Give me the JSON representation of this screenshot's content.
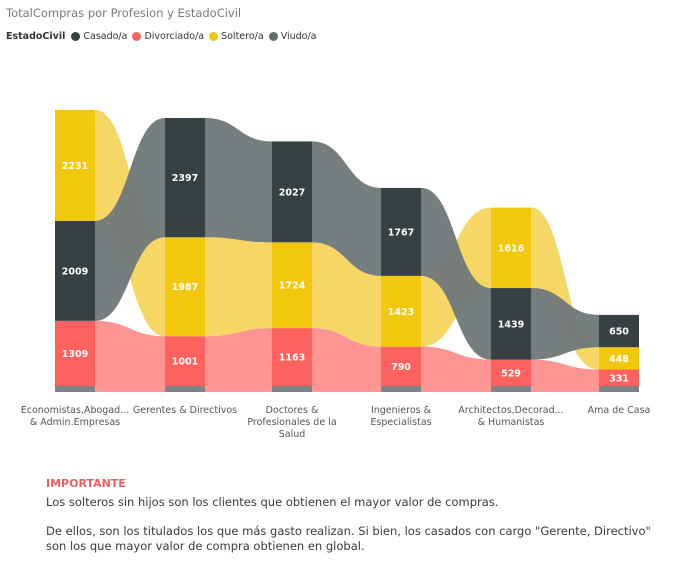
{
  "title": "TotalCompras por Profesion y EstadoCivil",
  "legend": {
    "title": "EstadoCivil",
    "items": [
      {
        "label": "Casado/a",
        "color": "#374144"
      },
      {
        "label": "Divorciado/a",
        "color": "#fd625e"
      },
      {
        "label": "Soltero/a",
        "color": "#f2c80f"
      },
      {
        "label": "Viudo/a",
        "color": "#5f6b6d"
      }
    ]
  },
  "chart_data": {
    "type": "bar",
    "title": "TotalCompras por Profesion y EstadoCivil",
    "categories": [
      [
        "Economistas,Abogad...",
        "& Admin.Empresas"
      ],
      [
        "Gerentes & Directivos"
      ],
      [
        "Doctores &",
        "Profesionales de la",
        "Salud"
      ],
      [
        "Ingenieros &",
        "Especialistas"
      ],
      [
        "Architectos,Decorad...",
        "& Humanistas"
      ],
      [
        "Ama de Casa"
      ]
    ],
    "stacks": [
      [
        {
          "series": "Divorciado/a",
          "value": 1309
        },
        {
          "series": "Casado/a",
          "value": 2009
        },
        {
          "series": "Soltero/a",
          "value": 2231
        }
      ],
      [
        {
          "series": "Divorciado/a",
          "value": 1001
        },
        {
          "series": "Soltero/a",
          "value": 1987
        },
        {
          "series": "Casado/a",
          "value": 2397
        }
      ],
      [
        {
          "series": "Divorciado/a",
          "value": 1163
        },
        {
          "series": "Soltero/a",
          "value": 1724
        },
        {
          "series": "Casado/a",
          "value": 2027
        }
      ],
      [
        {
          "series": "Divorciado/a",
          "value": 790
        },
        {
          "series": "Soltero/a",
          "value": 1423
        },
        {
          "series": "Casado/a",
          "value": 1767
        }
      ],
      [
        {
          "series": "Divorciado/a",
          "value": 529
        },
        {
          "series": "Casado/a",
          "value": 1439
        },
        {
          "series": "Soltero/a",
          "value": 1616
        }
      ],
      [
        {
          "series": "Divorciado/a",
          "value": 331
        },
        {
          "series": "Soltero/a",
          "value": 448
        },
        {
          "series": "Casado/a",
          "value": 650
        }
      ]
    ],
    "colors": {
      "Casado/a": "#374144",
      "Divorciado/a": "#fd625e",
      "Soltero/a": "#f2c80f",
      "Viudo/a": "#5f6b6d"
    },
    "ribbon_colors": {
      "Casado/a": "#6f7778",
      "Divorciado/a": "#fe8f8d",
      "Soltero/a": "#f5d55d"
    }
  },
  "note": {
    "heading": "IMPORTANTE",
    "p1": "Los solteros sin hijos son los clientes que obtienen el mayor valor de compras.",
    "p2": "De ellos, son los titulados los que más gasto realizan. Si bien, los casados con cargo \"Gerente, Directivo\" son los que mayor valor de compra obtienen en global."
  }
}
